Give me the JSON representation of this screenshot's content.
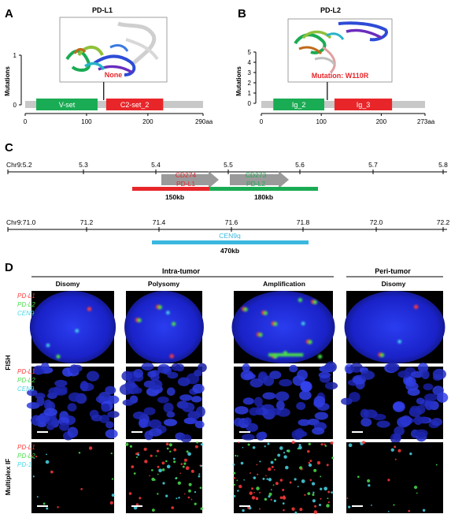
{
  "panel_a": {
    "letter": "A",
    "title": "PD-L1",
    "ylabel": "Mutations",
    "yticks": [
      "1",
      "0"
    ],
    "structure_label": "None",
    "domains": [
      {
        "name": "V-set",
        "start": 18,
        "end": 118,
        "color": "#1aac54"
      },
      {
        "name": "C2-set_2",
        "start": 132,
        "end": 225,
        "color": "#e8262a"
      }
    ],
    "xticks": [
      {
        "value": 0,
        "label": "0"
      },
      {
        "value": 100,
        "label": "100"
      },
      {
        "value": 200,
        "label": "200"
      }
    ],
    "length": 290,
    "length_label": "290aa",
    "lollipop_pos": 128
  },
  "panel_b": {
    "letter": "B",
    "title": "PD-L2",
    "ylabel": "Mutations",
    "yticks": [
      "5",
      "4",
      "3",
      "2",
      "1",
      "0"
    ],
    "structure_label": "Mutation: W110R",
    "domains": [
      {
        "name": "Ig_2",
        "start": 20,
        "end": 105,
        "color": "#1aac54"
      },
      {
        "name": "Ig_3",
        "start": 122,
        "end": 218,
        "color": "#e8262a"
      }
    ],
    "xticks": [
      {
        "value": 0,
        "label": "0"
      },
      {
        "value": 100,
        "label": "100"
      },
      {
        "value": 200,
        "label": "200"
      }
    ],
    "length": 273,
    "length_label": "273aa",
    "lollipop_pos": 110
  },
  "panel_c": {
    "letter": "C",
    "track1": {
      "ticks": [
        "Chr9:5.2",
        "5.3",
        "5.4",
        "5.5",
        "5.6",
        "5.7",
        "5.8"
      ],
      "genes": [
        {
          "name1": "CD274",
          "name2": "PD-L1",
          "size": "150kb",
          "color": "#e8262a",
          "name_color": "#e8262a"
        },
        {
          "name1": "CD273",
          "name2": "PD-L2",
          "size": "180kb",
          "color": "#1aac54",
          "name_color": "#1aac54"
        }
      ]
    },
    "track2": {
      "ticks": [
        "Chr9:71.0",
        "71.2",
        "71.4",
        "71.6",
        "71.8",
        "72.0",
        "72.2"
      ],
      "region": {
        "name": "CEN9q",
        "size": "470kb",
        "color": "#3bb8e0"
      }
    }
  },
  "panel_d": {
    "letter": "D",
    "group_intra": "Intra-tumor",
    "group_peri": "Peri-tumor",
    "columns": [
      "Disomy",
      "Polysomy",
      "Amplification",
      "Disomy"
    ],
    "row_fish": "FISH",
    "row_mif": "Multiplex IF",
    "legend_fish": [
      {
        "text": "PD-L1",
        "color": "#ff3b3b"
      },
      {
        "text": "PD-L2",
        "color": "#4be04b"
      },
      {
        "text": "CEN9",
        "color": "#4ad8e8"
      }
    ],
    "legend_mif": [
      {
        "text": "PD-L1",
        "color": "#ff3b3b"
      },
      {
        "text": "PD-L2",
        "color": "#4be04b"
      },
      {
        "text": "PD-1",
        "color": "#4ad8e8"
      }
    ]
  }
}
